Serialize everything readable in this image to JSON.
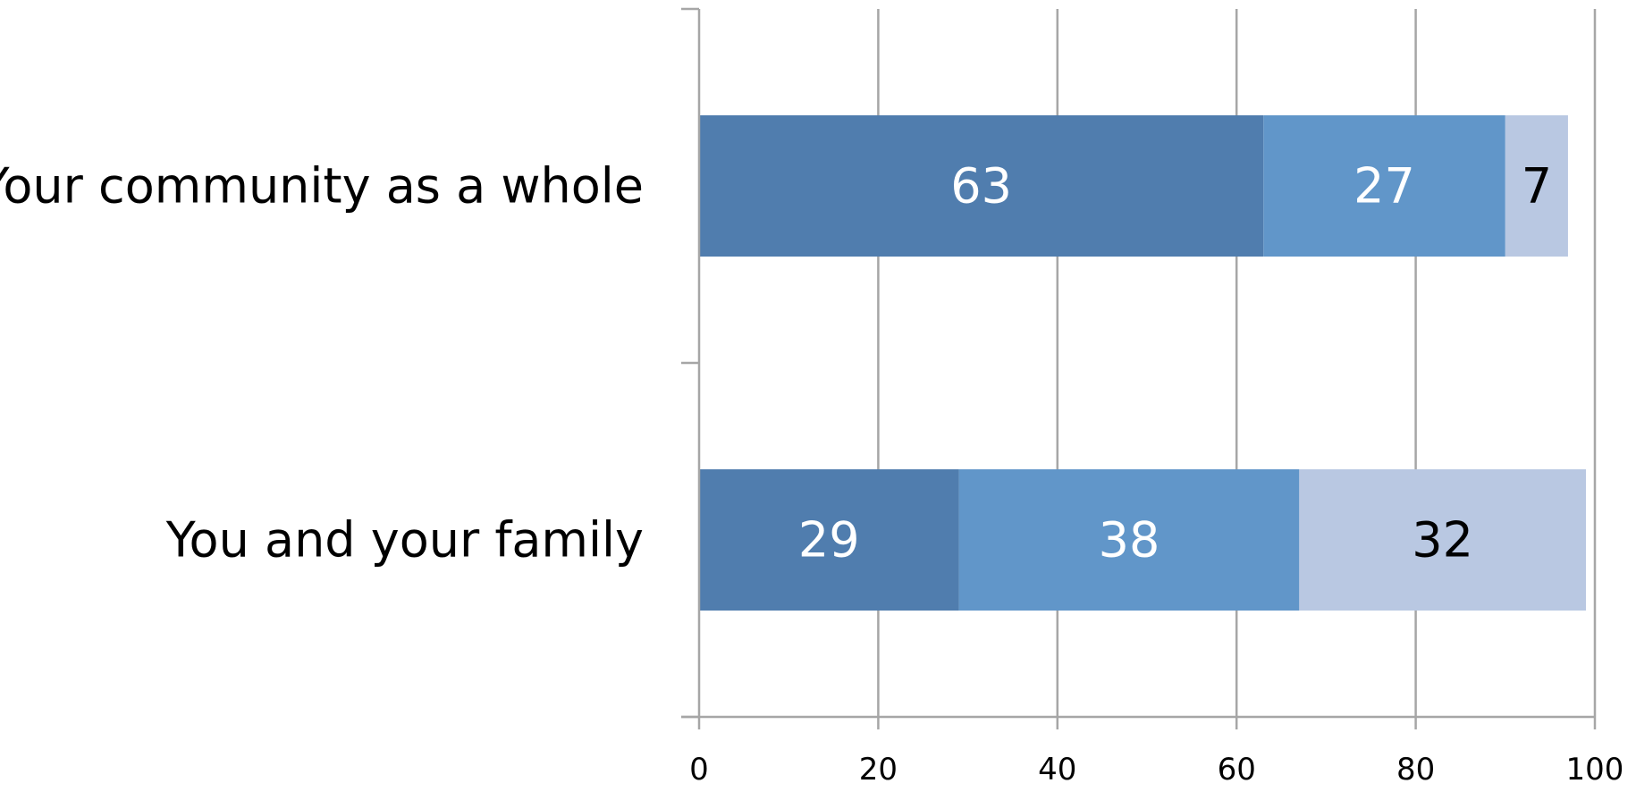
{
  "chart_data": {
    "type": "bar",
    "orientation": "horizontal",
    "stacked": true,
    "categories": [
      "Your community as a whole",
      "You and your family"
    ],
    "series": [
      {
        "values": [
          63,
          29
        ],
        "color": "#507DAE",
        "label_color": "#FFFFFF"
      },
      {
        "values": [
          27,
          38
        ],
        "color": "#6196C9",
        "label_color": "#FFFFFF"
      },
      {
        "values": [
          7,
          32
        ],
        "color": "#B9C8E2",
        "label_color": "#000000"
      }
    ],
    "xlim": [
      0,
      100
    ],
    "xticks": [
      0,
      20,
      40,
      60,
      80,
      100
    ],
    "grid": "vertical",
    "gridline_color": "#A6A6A6",
    "axis_color": "#A6A6A6",
    "legend": "none"
  }
}
